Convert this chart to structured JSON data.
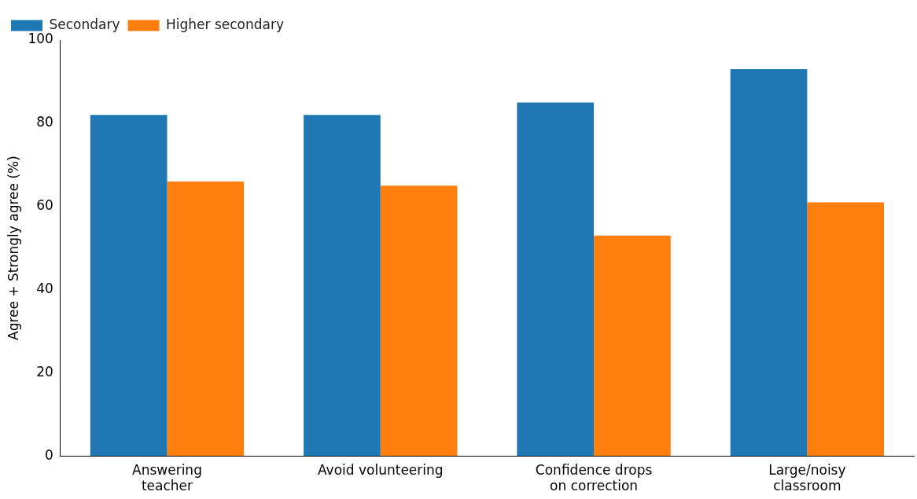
{
  "chart_data": {
    "type": "bar",
    "ylabel": "Agree + Strongly agree (%)",
    "categories": [
      "Answering\nteacher",
      "Avoid volunteering",
      "Confidence drops\non correction",
      "Large/noisy\nclassroom"
    ],
    "series": [
      {
        "name": "Secondary",
        "color": "#1f77b4",
        "values": [
          82,
          82,
          85,
          93
        ]
      },
      {
        "name": "Higher secondary",
        "color": "#ff7f0e",
        "values": [
          66,
          65,
          53,
          61
        ]
      }
    ],
    "ylim": [
      0,
      100
    ],
    "yticks": [
      0,
      20,
      40,
      60,
      80,
      100
    ],
    "grid": false,
    "legend": "top left"
  }
}
